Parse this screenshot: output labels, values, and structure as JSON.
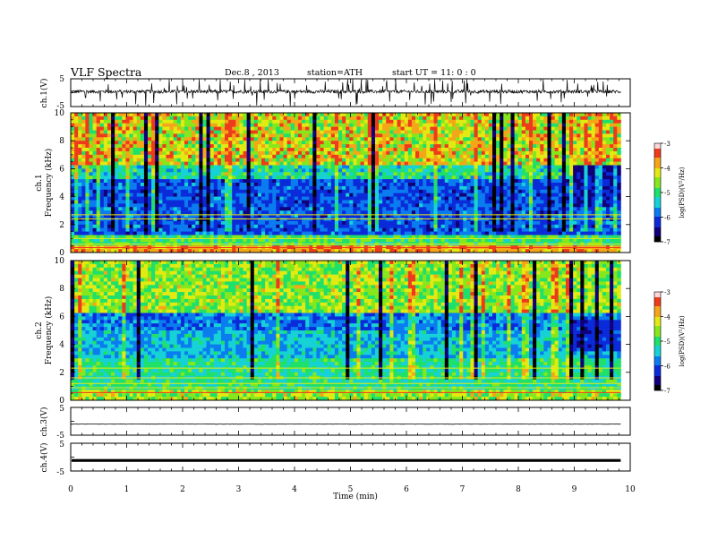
{
  "header": {
    "title": "VLF  Spectra",
    "date": "Dec.8 , 2013",
    "station": "station=ATH",
    "start": "start  UT =    11: 0  : 0"
  },
  "chart_data": [
    {
      "type": "line",
      "panel": "ch1",
      "ylabel": "ch.1(V)",
      "ylim": [
        -5,
        5
      ],
      "yticks": [
        "5",
        "-5"
      ],
      "color": "#000000",
      "note_shape": "dense waveform centered near 0 V with spikes"
    },
    {
      "type": "heatmap",
      "panel": "spec1",
      "ylabel_lines": [
        "ch.1",
        "Frequency (kHz)"
      ],
      "ylim": [
        0,
        10
      ],
      "yticks": [
        "0",
        "2",
        "4",
        "6",
        "8",
        "10"
      ],
      "colorbar": {
        "label": "log(PSD)(V²/Hz)",
        "ticks": [
          "-3",
          "-4",
          "-5",
          "-6",
          "-7"
        ],
        "range": [
          -7,
          -3
        ]
      }
    },
    {
      "type": "heatmap",
      "panel": "spec2",
      "ylabel_lines": [
        "ch.2",
        "Frequency (kHz)"
      ],
      "ylim": [
        0,
        10
      ],
      "yticks": [
        "0",
        "2",
        "4",
        "6",
        "8",
        "10"
      ],
      "colorbar": {
        "label": "log(PSD)(V²/Hz)",
        "ticks": [
          "-3",
          "-4",
          "-5",
          "-6",
          "-7"
        ],
        "range": [
          -7,
          -3
        ]
      }
    },
    {
      "type": "line",
      "panel": "ch3",
      "ylabel": "ch.3(V)",
      "ylim": [
        -5,
        5
      ],
      "yticks": [
        "5",
        "-5"
      ],
      "color": "#000000"
    },
    {
      "type": "line",
      "panel": "ch4",
      "ylabel": "ch.4(V)",
      "ylim": [
        -5,
        5
      ],
      "yticks": [
        "5",
        "-5"
      ],
      "color": "#000000"
    }
  ],
  "xaxis": {
    "label": "Time  (min)",
    "range": [
      0,
      10
    ],
    "data_end": 9.83,
    "ticks": [
      "0",
      "1",
      "2",
      "3",
      "4",
      "5",
      "6",
      "7",
      "8",
      "9",
      "10"
    ]
  },
  "colormap": [
    "#000000",
    "#12007a",
    "#0b2bd9",
    "#0a7cf0",
    "#16d2d6",
    "#1ee06a",
    "#86e81c",
    "#e3ea12",
    "#f4a618",
    "#ee3b1c",
    "#ffd7d7",
    "#ffffff"
  ]
}
